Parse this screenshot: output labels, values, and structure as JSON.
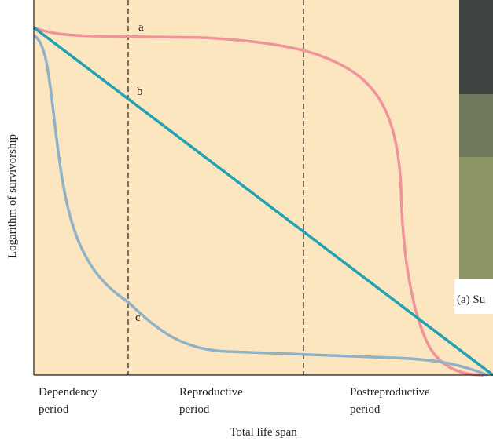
{
  "y_axis_label": "Logarithm of survivorship",
  "x_axis_label": "Total life span",
  "periods": [
    {
      "lines": [
        "Dependency",
        "period"
      ]
    },
    {
      "lines": [
        "Reproductive",
        "period"
      ]
    },
    {
      "lines": [
        "Postreproductive",
        "period"
      ]
    }
  ],
  "curve_labels": [
    "a",
    "b",
    "c"
  ],
  "photo_caption": "(a) Su"
}
